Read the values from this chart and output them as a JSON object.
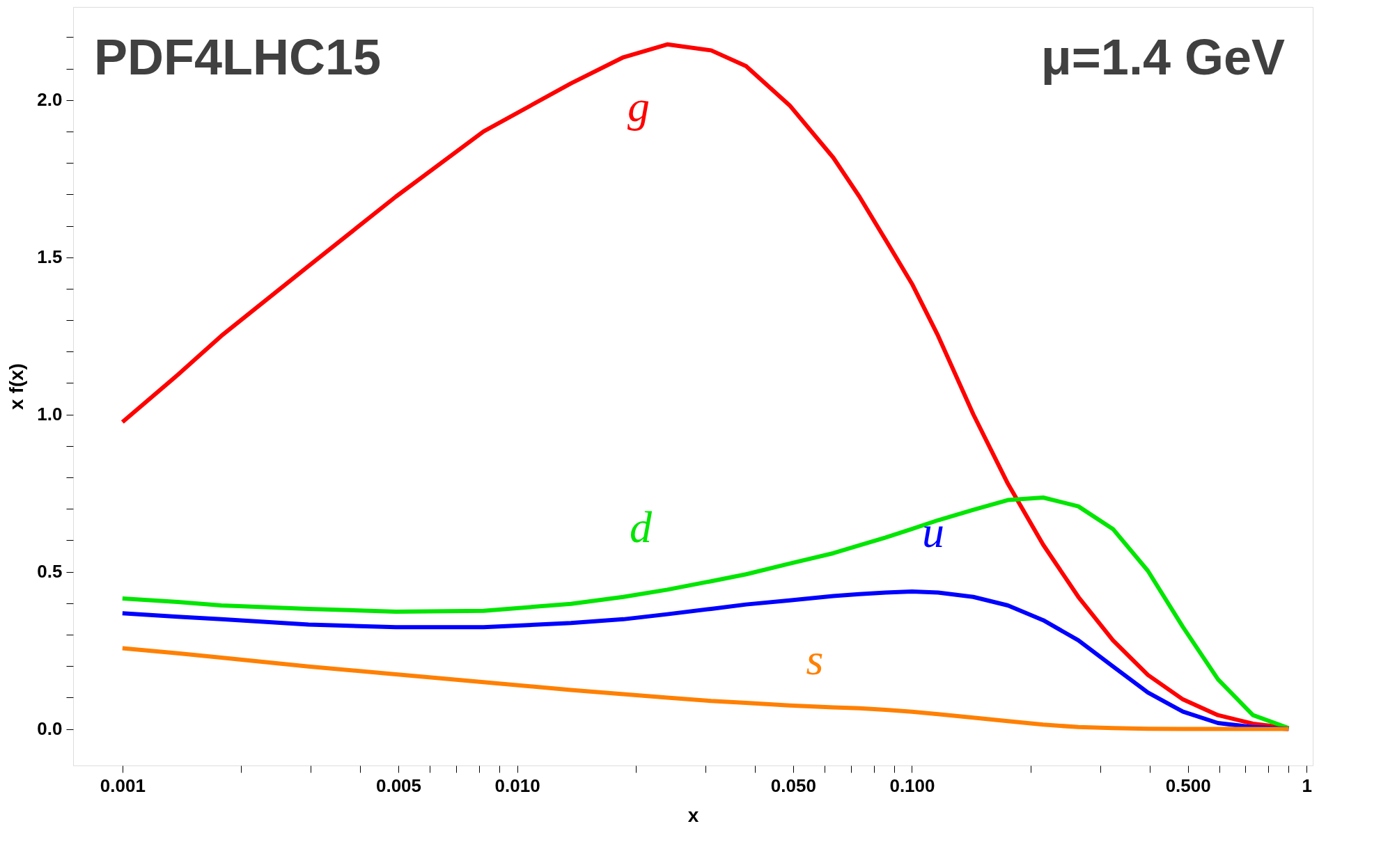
{
  "chart_data": {
    "type": "line",
    "xlabel": "x",
    "ylabel": "x f(x)",
    "log": "x",
    "grid": false,
    "legend": false,
    "marker": "none",
    "line_style": "solid",
    "x": [
      0.001,
      0.00138,
      0.00178,
      0.00296,
      0.00493,
      0.00822,
      0.01368,
      0.01858,
      0.024,
      0.031,
      0.038,
      0.049,
      0.0632,
      0.0736,
      0.0858,
      0.1,
      0.1165,
      0.143,
      0.175,
      0.215,
      0.264,
      0.323,
      0.396,
      0.486,
      0.596,
      0.731,
      0.9
    ],
    "series": [
      {
        "name": "g",
        "color": "#ff0000",
        "values": [
          0.976,
          1.126,
          1.25,
          1.472,
          1.693,
          1.9,
          2.053,
          2.136,
          2.177,
          2.158,
          2.108,
          1.983,
          1.817,
          1.693,
          1.555,
          1.416,
          1.25,
          1.001,
          0.78,
          0.586,
          0.42,
          0.282,
          0.172,
          0.094,
          0.044,
          0.017,
          0.003
        ]
      },
      {
        "name": "d",
        "color": "#00e600",
        "values": [
          0.415,
          0.404,
          0.393,
          0.382,
          0.373,
          0.376,
          0.398,
          0.42,
          0.443,
          0.47,
          0.492,
          0.526,
          0.559,
          0.584,
          0.609,
          0.636,
          0.664,
          0.697,
          0.728,
          0.736,
          0.708,
          0.636,
          0.503,
          0.324,
          0.158,
          0.044,
          0.003
        ]
      },
      {
        "name": "u",
        "color": "#0000ff",
        "values": [
          0.368,
          0.357,
          0.349,
          0.332,
          0.324,
          0.324,
          0.337,
          0.349,
          0.365,
          0.382,
          0.396,
          0.409,
          0.423,
          0.429,
          0.434,
          0.437,
          0.434,
          0.42,
          0.393,
          0.346,
          0.282,
          0.199,
          0.116,
          0.055,
          0.019,
          0.006,
          0.0
        ]
      },
      {
        "name": "s",
        "color": "#ff8000",
        "values": [
          0.257,
          0.241,
          0.227,
          0.199,
          0.174,
          0.149,
          0.124,
          0.111,
          0.1,
          0.089,
          0.083,
          0.075,
          0.069,
          0.066,
          0.061,
          0.055,
          0.047,
          0.036,
          0.025,
          0.014,
          0.006,
          0.003,
          0.001,
          0.0,
          0.0,
          0.0,
          0.0
        ]
      }
    ],
    "annotations": [
      "PDF4LHC15",
      "μ=1.4 GeV"
    ],
    "xlim": [
      0.00075,
      1.036
    ],
    "ylim": [
      -0.116,
      2.296
    ],
    "xticks": [
      {
        "value": 0.001,
        "label": "0.001"
      },
      {
        "value": 0.002,
        "label": null
      },
      {
        "value": 0.003,
        "label": null
      },
      {
        "value": 0.004,
        "label": null
      },
      {
        "value": 0.005,
        "label": "0.005"
      },
      {
        "value": 0.006,
        "label": null
      },
      {
        "value": 0.007,
        "label": null
      },
      {
        "value": 0.008,
        "label": null
      },
      {
        "value": 0.009,
        "label": null
      },
      {
        "value": 0.01,
        "label": "0.010"
      },
      {
        "value": 0.02,
        "label": null
      },
      {
        "value": 0.03,
        "label": null
      },
      {
        "value": 0.04,
        "label": null
      },
      {
        "value": 0.05,
        "label": "0.050"
      },
      {
        "value": 0.06,
        "label": null
      },
      {
        "value": 0.07,
        "label": null
      },
      {
        "value": 0.08,
        "label": null
      },
      {
        "value": 0.09,
        "label": null
      },
      {
        "value": 0.1,
        "label": "0.100"
      },
      {
        "value": 0.2,
        "label": null
      },
      {
        "value": 0.3,
        "label": null
      },
      {
        "value": 0.4,
        "label": null
      },
      {
        "value": 0.5,
        "label": "0.500"
      },
      {
        "value": 0.6,
        "label": null
      },
      {
        "value": 0.7,
        "label": null
      },
      {
        "value": 0.8,
        "label": null
      },
      {
        "value": 0.9,
        "label": null
      },
      {
        "value": 1,
        "label": "1"
      }
    ],
    "yticks": [
      {
        "value": 0,
        "label": "0.0"
      },
      {
        "value": 0.1,
        "label": null
      },
      {
        "value": 0.2,
        "label": null
      },
      {
        "value": 0.3,
        "label": null
      },
      {
        "value": 0.4,
        "label": null
      },
      {
        "value": 0.5,
        "label": "0.5"
      },
      {
        "value": 0.6,
        "label": null
      },
      {
        "value": 0.7,
        "label": null
      },
      {
        "value": 0.8,
        "label": null
      },
      {
        "value": 0.9,
        "label": null
      },
      {
        "value": 1.0,
        "label": "1.0"
      },
      {
        "value": 1.1,
        "label": null
      },
      {
        "value": 1.2,
        "label": null
      },
      {
        "value": 1.3,
        "label": null
      },
      {
        "value": 1.4,
        "label": null
      },
      {
        "value": 1.5,
        "label": "1.5"
      },
      {
        "value": 1.6,
        "label": null
      },
      {
        "value": 1.7,
        "label": null
      },
      {
        "value": 1.8,
        "label": null
      },
      {
        "value": 1.9,
        "label": null
      },
      {
        "value": 2.0,
        "label": "2.0"
      },
      {
        "value": 2.1,
        "label": null
      },
      {
        "value": 2.2,
        "label": null
      }
    ]
  }
}
